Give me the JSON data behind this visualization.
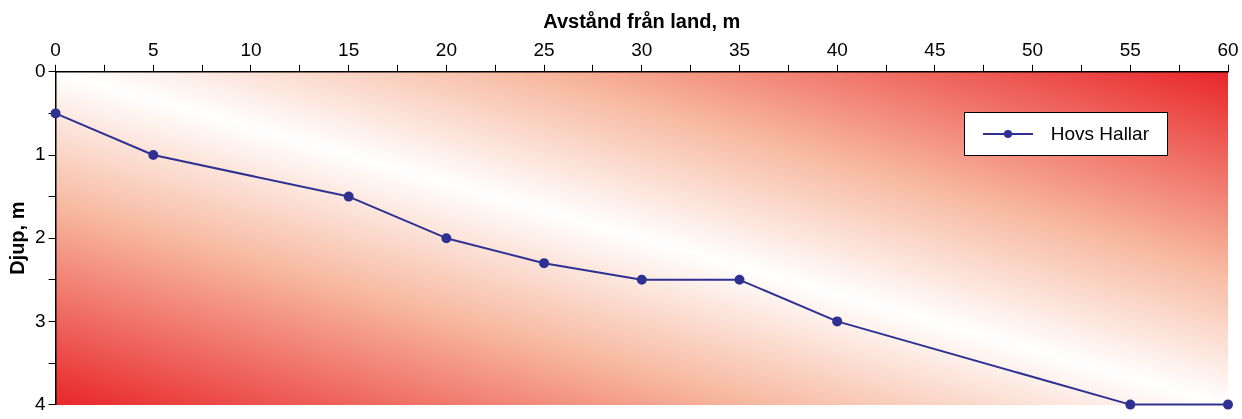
{
  "chart_data": {
    "type": "line",
    "xlabel": "Avstånd från land, m",
    "ylabel": "Djup, m",
    "x": [
      0,
      5,
      15,
      20,
      25,
      30,
      35,
      40,
      55,
      60
    ],
    "series": [
      {
        "name": "Hovs Hallar",
        "color": "#2e3192",
        "values": [
          0.5,
          1,
          1.5,
          2,
          2.3,
          2.5,
          2.5,
          3,
          4,
          4
        ]
      }
    ],
    "xlim": [
      0,
      60
    ],
    "xticks": [
      0,
      {
        "value": 2.5,
        "label": null
      },
      5,
      {
        "value": 7.5,
        "label": null
      },
      10,
      {
        "value": 12.5,
        "label": null
      },
      15,
      {
        "value": 17.5,
        "label": null
      },
      20,
      {
        "value": 22.5,
        "label": null
      },
      25,
      {
        "value": 27.5,
        "label": null
      },
      30,
      {
        "value": 32.5,
        "label": null
      },
      35,
      {
        "value": 37.5,
        "label": null
      },
      40,
      {
        "value": 42.5,
        "label": null
      },
      45,
      {
        "value": 47.5,
        "label": null
      },
      50,
      {
        "value": 52.5,
        "label": null
      },
      55,
      {
        "value": 57.5,
        "label": null
      },
      60
    ],
    "ylim": [
      4,
      0
    ],
    "yticks": [
      0,
      {
        "value": 0.5,
        "label": null
      },
      1,
      {
        "value": 1.5,
        "label": null
      },
      2,
      {
        "value": 2.5,
        "label": null
      },
      3,
      {
        "value": 3.5,
        "label": null
      },
      4
    ],
    "grid": false,
    "legend": "top right",
    "marker": "circle",
    "line_style": "solid"
  }
}
